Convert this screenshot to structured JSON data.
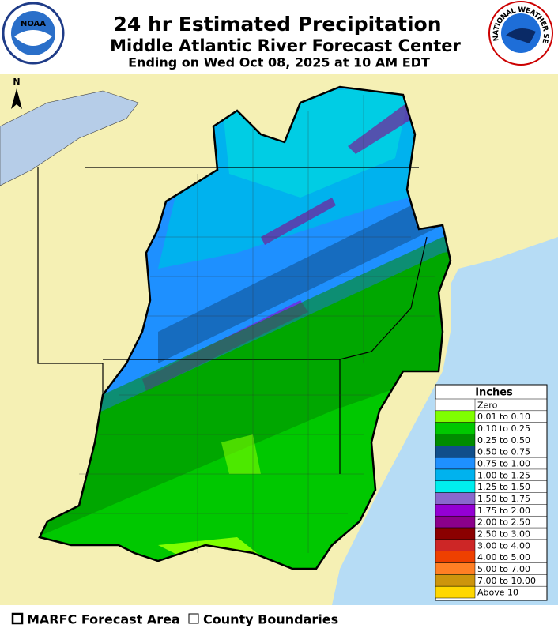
{
  "header": {
    "title": "24 hr Estimated Precipitation",
    "subtitle": "Middle Atlantic River Forecast Center",
    "valid_time": "Ending on Wed Oct 08, 2025 at 10 AM EDT",
    "left_logo": "NOAA",
    "right_logo": "NATIONAL WEATHER SERVICE"
  },
  "map": {
    "north_label": "N"
  },
  "legend": {
    "title": "Inches",
    "items": [
      {
        "label": "Zero",
        "color": "#ffffff"
      },
      {
        "label": "0.01 to 0.10",
        "color": "#7fff00"
      },
      {
        "label": "0.10 to 0.25",
        "color": "#00c800"
      },
      {
        "label": "0.25 to 0.50",
        "color": "#008c00"
      },
      {
        "label": "0.50 to 0.75",
        "color": "#104e8b"
      },
      {
        "label": "0.75 to 1.00",
        "color": "#1e90ff"
      },
      {
        "label": "1.00 to 1.25",
        "color": "#00b2ee"
      },
      {
        "label": "1.25 to 1.50",
        "color": "#00eeee"
      },
      {
        "label": "1.50 to 1.75",
        "color": "#8968cd"
      },
      {
        "label": "1.75 to 2.00",
        "color": "#9400d3"
      },
      {
        "label": "2.00 to 2.50",
        "color": "#8b008b"
      },
      {
        "label": "2.50 to 3.00",
        "color": "#8b0000"
      },
      {
        "label": "3.00 to 4.00",
        "color": "#cd2626"
      },
      {
        "label": "4.00 to 5.00",
        "color": "#ee4000"
      },
      {
        "label": "5.00 to 7.00",
        "color": "#ff7f24"
      },
      {
        "label": "7.00 to 10.00",
        "color": "#cd950c"
      },
      {
        "label": "Above 10",
        "color": "#ffd700"
      }
    ]
  },
  "footer": {
    "items": [
      "MARFC Forecast Area",
      "County Boundaries"
    ]
  }
}
